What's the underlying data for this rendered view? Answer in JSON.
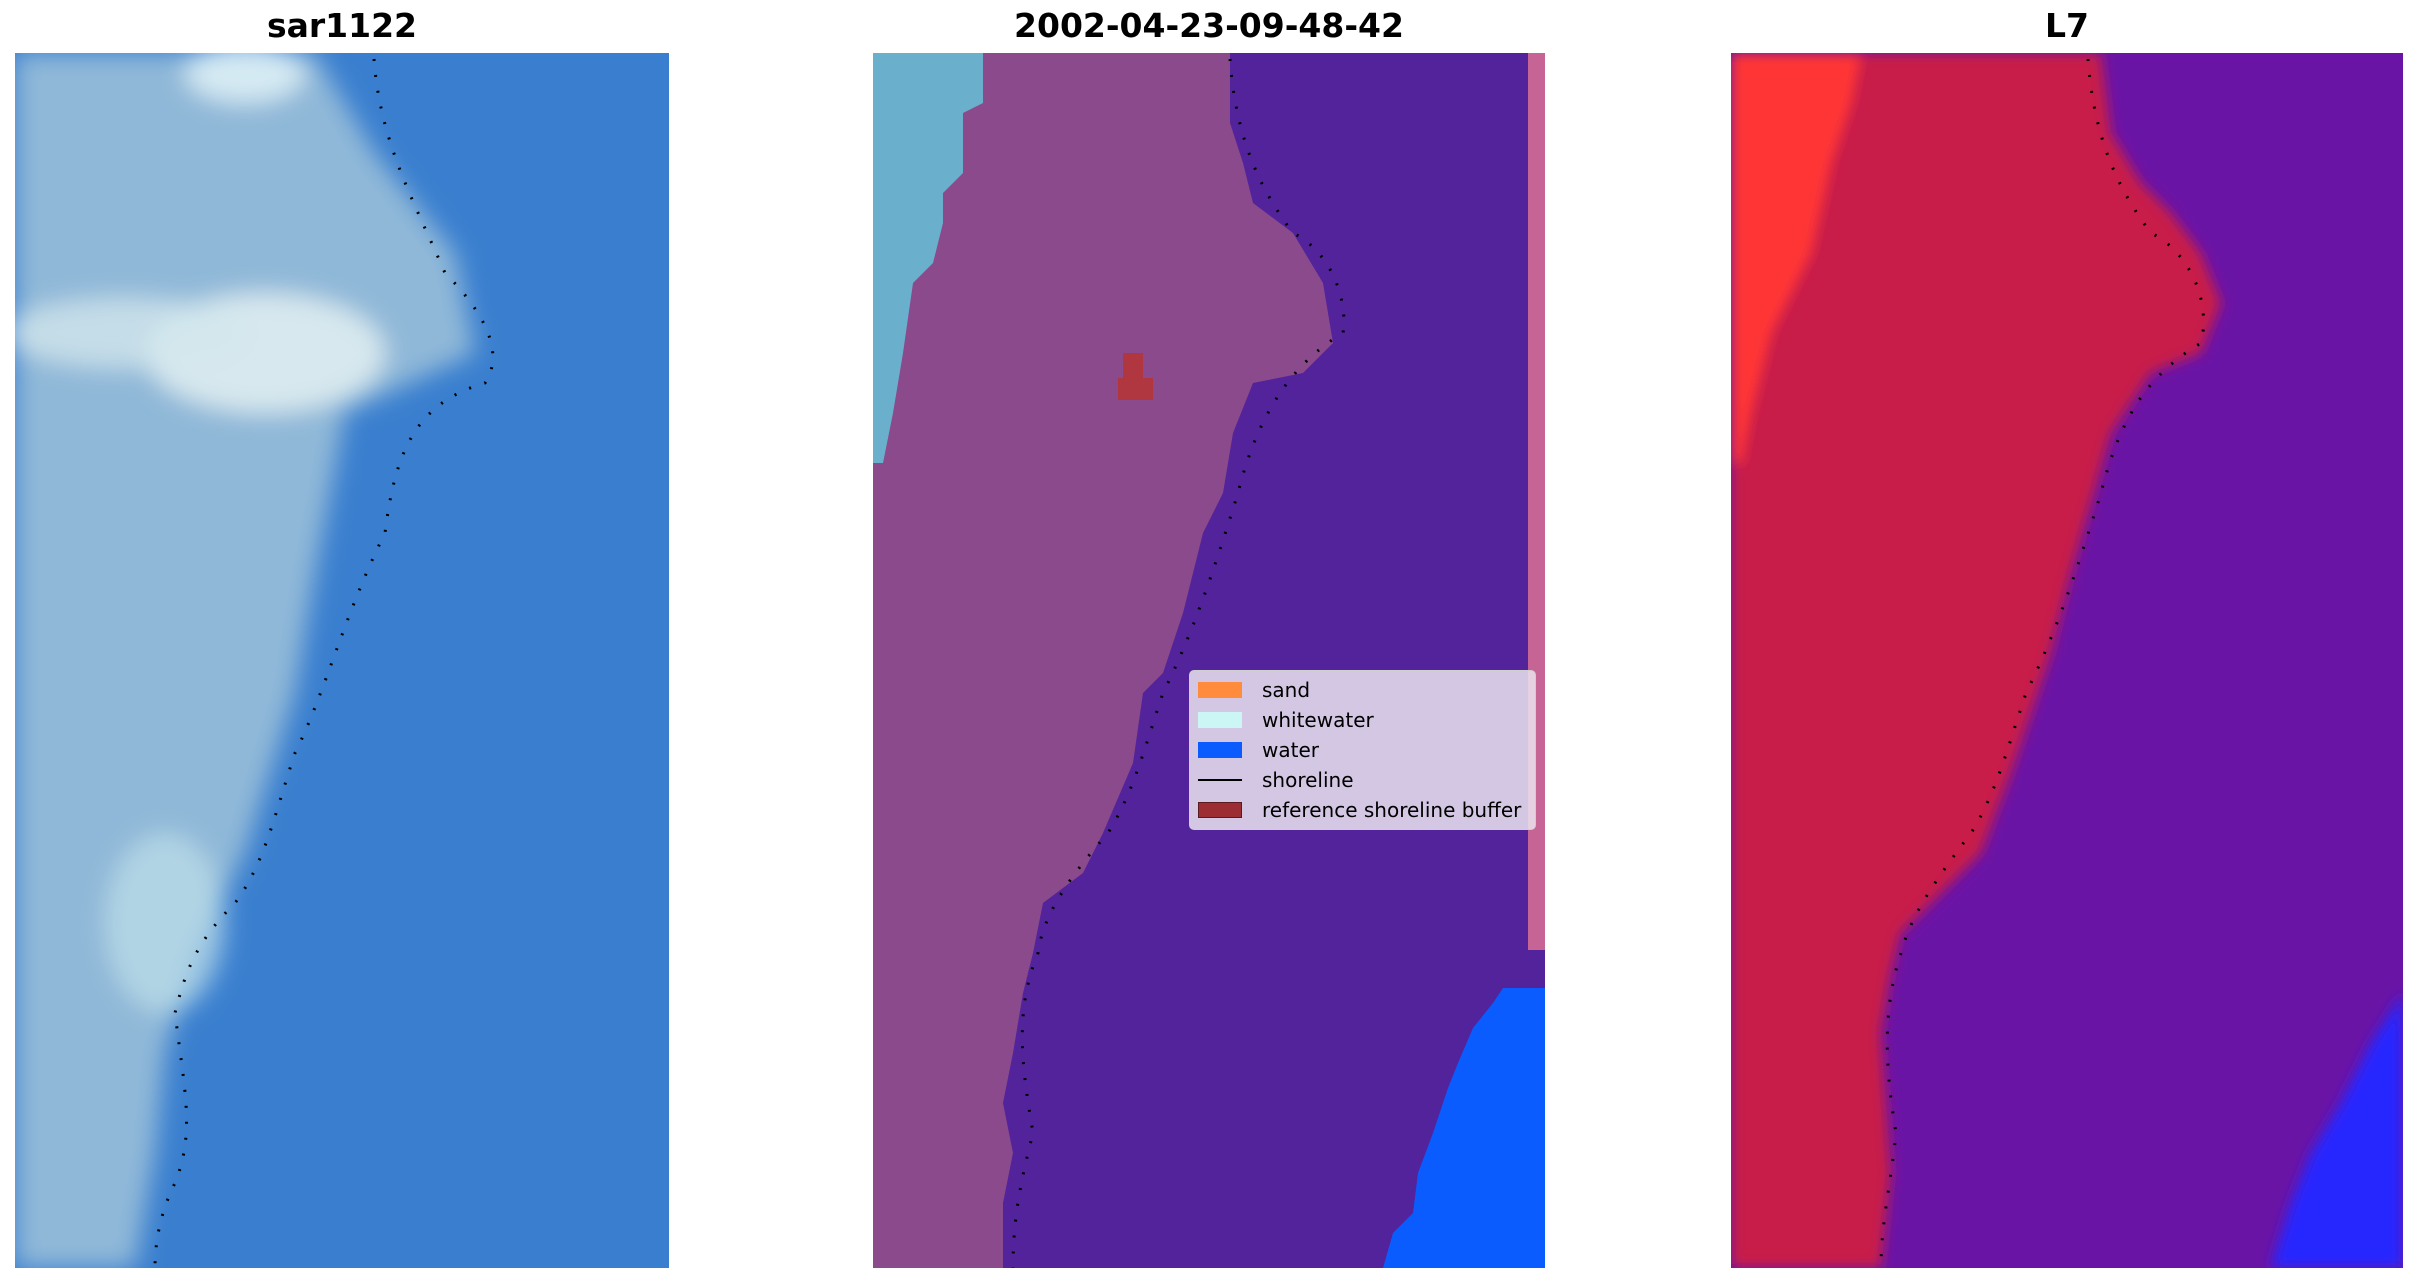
{
  "panels": [
    {
      "title": "sar1122"
    },
    {
      "title": "2002-04-23-09-48-42"
    },
    {
      "title": "L7"
    }
  ],
  "legend": {
    "items": [
      {
        "label": "sand",
        "color": "#ff8c3c",
        "kind": "patch"
      },
      {
        "label": "whitewater",
        "color": "#ccf5f5",
        "kind": "patch"
      },
      {
        "label": "water",
        "color": "#0a5cff",
        "kind": "patch"
      },
      {
        "label": "shoreline",
        "color": "#000000",
        "kind": "line"
      },
      {
        "label": "reference shoreline buffer",
        "color": "#9b2d33",
        "kind": "patch"
      }
    ]
  },
  "colors": {
    "rgb_water": "#3a7fcf",
    "rgb_land": "#8fb8d8",
    "class_land": "#8a4a8c",
    "class_water": "#52239b",
    "class_water_bright": "#0a5cff",
    "class_whitewater": "#6ab0cc",
    "class_buffer": "#b0363f",
    "class_edge": "#c66496",
    "mndwi_land": "#c81e48",
    "mndwi_water": "#6a14a6",
    "mndwi_hot": "#ff3535",
    "mndwi_blue": "#2828ff"
  }
}
